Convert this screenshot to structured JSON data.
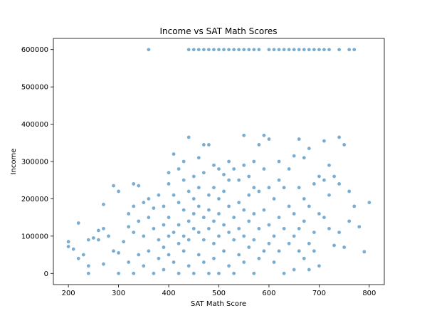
{
  "chart_data": {
    "type": "scatter",
    "title": "Income vs SAT Math Scores",
    "x_label": "SAT Math Score",
    "y_label": "Income",
    "color": "#1f77b4",
    "xlim": [
      170,
      830
    ],
    "ylim": [
      -30000,
      630000
    ],
    "xticks": [
      200,
      300,
      400,
      500,
      600,
      700,
      800
    ],
    "yticks": [
      0,
      100000,
      200000,
      300000,
      400000,
      500000,
      600000
    ],
    "x": [
      200,
      200,
      210,
      220,
      220,
      230,
      240,
      240,
      240,
      250,
      260,
      260,
      270,
      270,
      270,
      280,
      290,
      290,
      300,
      300,
      300,
      310,
      320,
      320,
      320,
      330,
      330,
      330,
      330,
      340,
      340,
      340,
      350,
      350,
      350,
      360,
      360,
      360,
      360,
      370,
      370,
      370,
      380,
      380,
      380,
      390,
      390,
      390,
      390,
      400,
      400,
      400,
      400,
      400,
      410,
      410,
      410,
      410,
      420,
      420,
      420,
      420,
      420,
      430,
      430,
      430,
      430,
      430,
      440,
      440,
      440,
      440,
      440,
      440,
      450,
      450,
      450,
      450,
      450,
      450,
      460,
      460,
      460,
      460,
      460,
      460,
      470,
      470,
      470,
      470,
      470,
      470,
      480,
      480,
      480,
      480,
      480,
      480,
      490,
      490,
      490,
      490,
      490,
      490,
      500,
      500,
      500,
      500,
      500,
      500,
      510,
      510,
      510,
      510,
      510,
      520,
      520,
      520,
      520,
      520,
      520,
      530,
      530,
      530,
      530,
      530,
      540,
      540,
      540,
      540,
      540,
      550,
      550,
      550,
      550,
      550,
      550,
      560,
      560,
      560,
      560,
      560,
      570,
      570,
      570,
      570,
      570,
      570,
      580,
      580,
      580,
      580,
      580,
      590,
      590,
      590,
      590,
      600,
      600,
      600,
      600,
      600,
      610,
      610,
      610,
      610,
      620,
      620,
      620,
      620,
      620,
      630,
      630,
      630,
      630,
      640,
      640,
      640,
      640,
      650,
      650,
      650,
      650,
      650,
      660,
      660,
      660,
      660,
      660,
      670,
      670,
      670,
      670,
      670,
      680,
      680,
      680,
      680,
      680,
      690,
      690,
      690,
      690,
      700,
      700,
      700,
      700,
      710,
      710,
      710,
      710,
      720,
      720,
      720,
      720,
      730,
      730,
      740,
      740,
      740,
      740,
      750,
      750,
      760,
      760,
      760,
      770,
      770,
      780,
      790,
      800
    ],
    "values": [
      85000,
      72000,
      65000,
      135000,
      40000,
      50000,
      90000,
      20000,
      0,
      95000,
      115000,
      90000,
      185000,
      120000,
      25000,
      100000,
      235000,
      60000,
      220000,
      55000,
      0,
      85000,
      160000,
      125000,
      30000,
      240000,
      180000,
      110000,
      0,
      235000,
      140000,
      50000,
      190000,
      100000,
      20000,
      200000,
      150000,
      60000,
      600000,
      175000,
      120000,
      0,
      210000,
      90000,
      40000,
      180000,
      130000,
      70000,
      10000,
      270000,
      240000,
      150000,
      100000,
      50000,
      320000,
      210000,
      110000,
      30000,
      280000,
      190000,
      130000,
      80000,
      0,
      300000,
      250000,
      170000,
      100000,
      60000,
      365000,
      220000,
      140000,
      90000,
      20000,
      600000,
      260000,
      200000,
      160000,
      120000,
      0,
      600000,
      310000,
      230000,
      180000,
      110000,
      50000,
      600000,
      345000,
      270000,
      150000,
      90000,
      30000,
      600000,
      345000,
      210000,
      170000,
      120000,
      0,
      600000,
      290000,
      230000,
      140000,
      80000,
      40000,
      600000,
      280000,
      200000,
      160000,
      100000,
      0,
      600000,
      265000,
      220000,
      130000,
      60000,
      600000,
      300000,
      250000,
      180000,
      110000,
      20000,
      600000,
      280000,
      150000,
      90000,
      0,
      600000,
      250000,
      190000,
      120000,
      50000,
      600000,
      370000,
      290000,
      170000,
      100000,
      30000,
      600000,
      260000,
      210000,
      140000,
      70000,
      600000,
      300000,
      230000,
      160000,
      90000,
      0,
      600000,
      345000,
      220000,
      120000,
      40000,
      600000,
      370000,
      280000,
      170000,
      60000,
      360000,
      230000,
      130000,
      80000,
      600000,
      200000,
      100000,
      30000,
      600000,
      300000,
      250000,
      150000,
      60000,
      600000,
      230000,
      120000,
      0,
      600000,
      280000,
      180000,
      80000,
      600000,
      315000,
      160000,
      100000,
      10000,
      600000,
      360000,
      230000,
      120000,
      60000,
      600000,
      310000,
      200000,
      140000,
      40000,
      600000,
      335000,
      180000,
      80000,
      10000,
      600000,
      240000,
      110000,
      60000,
      600000,
      260000,
      160000,
      20000,
      600000,
      355000,
      250000,
      150000,
      600000,
      290000,
      210000,
      120000,
      600000,
      260000,
      75000,
      365000,
      240000,
      110000,
      600000,
      345000,
      70000,
      220000,
      140000,
      600000,
      180000,
      600000,
      125000,
      58000,
      190000
    ]
  }
}
